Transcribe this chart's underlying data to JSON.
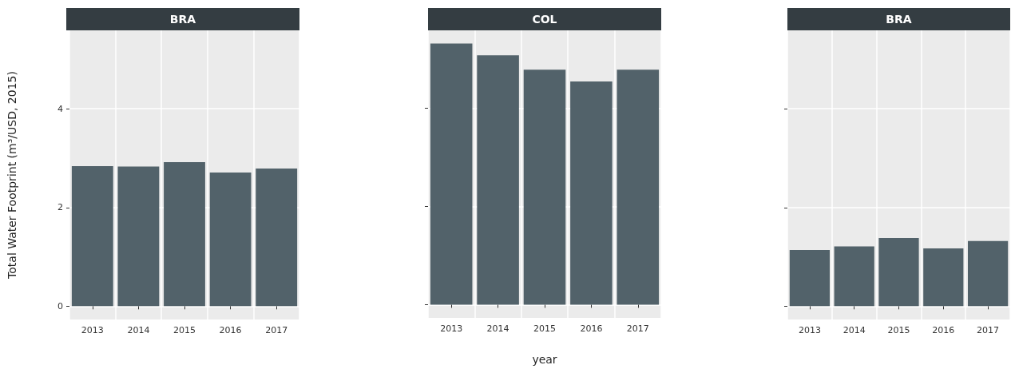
{
  "chart_data": [
    {
      "type": "bar",
      "title": "BRA",
      "ylabel": "Total Water Footprint (m³/USD, 2015)",
      "categories": [
        "2013",
        "2014",
        "2015",
        "2016",
        "2017"
      ],
      "values": [
        2.84,
        2.83,
        2.92,
        2.71,
        2.79
      ],
      "color": "#52626a",
      "ylim": [
        -0.27,
        5.59
      ],
      "yticks": [
        0,
        2,
        4
      ],
      "grid": true
    },
    {
      "type": "bar",
      "title": "COL",
      "xlabel": "year",
      "categories": [
        "2013",
        "2014",
        "2015",
        "2016",
        "2017"
      ],
      "values": [
        5.32,
        5.08,
        4.79,
        4.55,
        4.79
      ],
      "color": "#52626a",
      "ylim": [
        -0.27,
        5.59
      ],
      "yticks": [
        0,
        2,
        4
      ],
      "grid": true,
      "tick_labels": "x"
    },
    {
      "type": "bar",
      "title": "BRA",
      "categories": [
        "2013",
        "2014",
        "2015",
        "2016",
        "2017"
      ],
      "values": [
        1.14,
        1.21,
        1.38,
        1.17,
        1.32
      ],
      "color": "#52626a",
      "ylim": [
        -0.27,
        5.59
      ],
      "yticks": [
        0,
        2,
        4
      ],
      "grid": true,
      "tick_labels": "x"
    }
  ]
}
